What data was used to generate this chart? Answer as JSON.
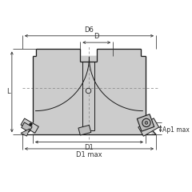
{
  "bg_color": "#ffffff",
  "line_color": "#1a1a1a",
  "gray_body": "#cccccc",
  "gray_shadow": "#aaaaaa",
  "gray_insert": "#bbbbbb",
  "gray_insert2": "#999999",
  "dim_color": "#333333",
  "fig_size": [
    2.4,
    2.4
  ],
  "dpi": 100,
  "labels": {
    "D6": "D6",
    "D": "D",
    "L": "L",
    "D1": "D1",
    "D1max": "D1 max",
    "Ap1max": "Ap1 max"
  }
}
